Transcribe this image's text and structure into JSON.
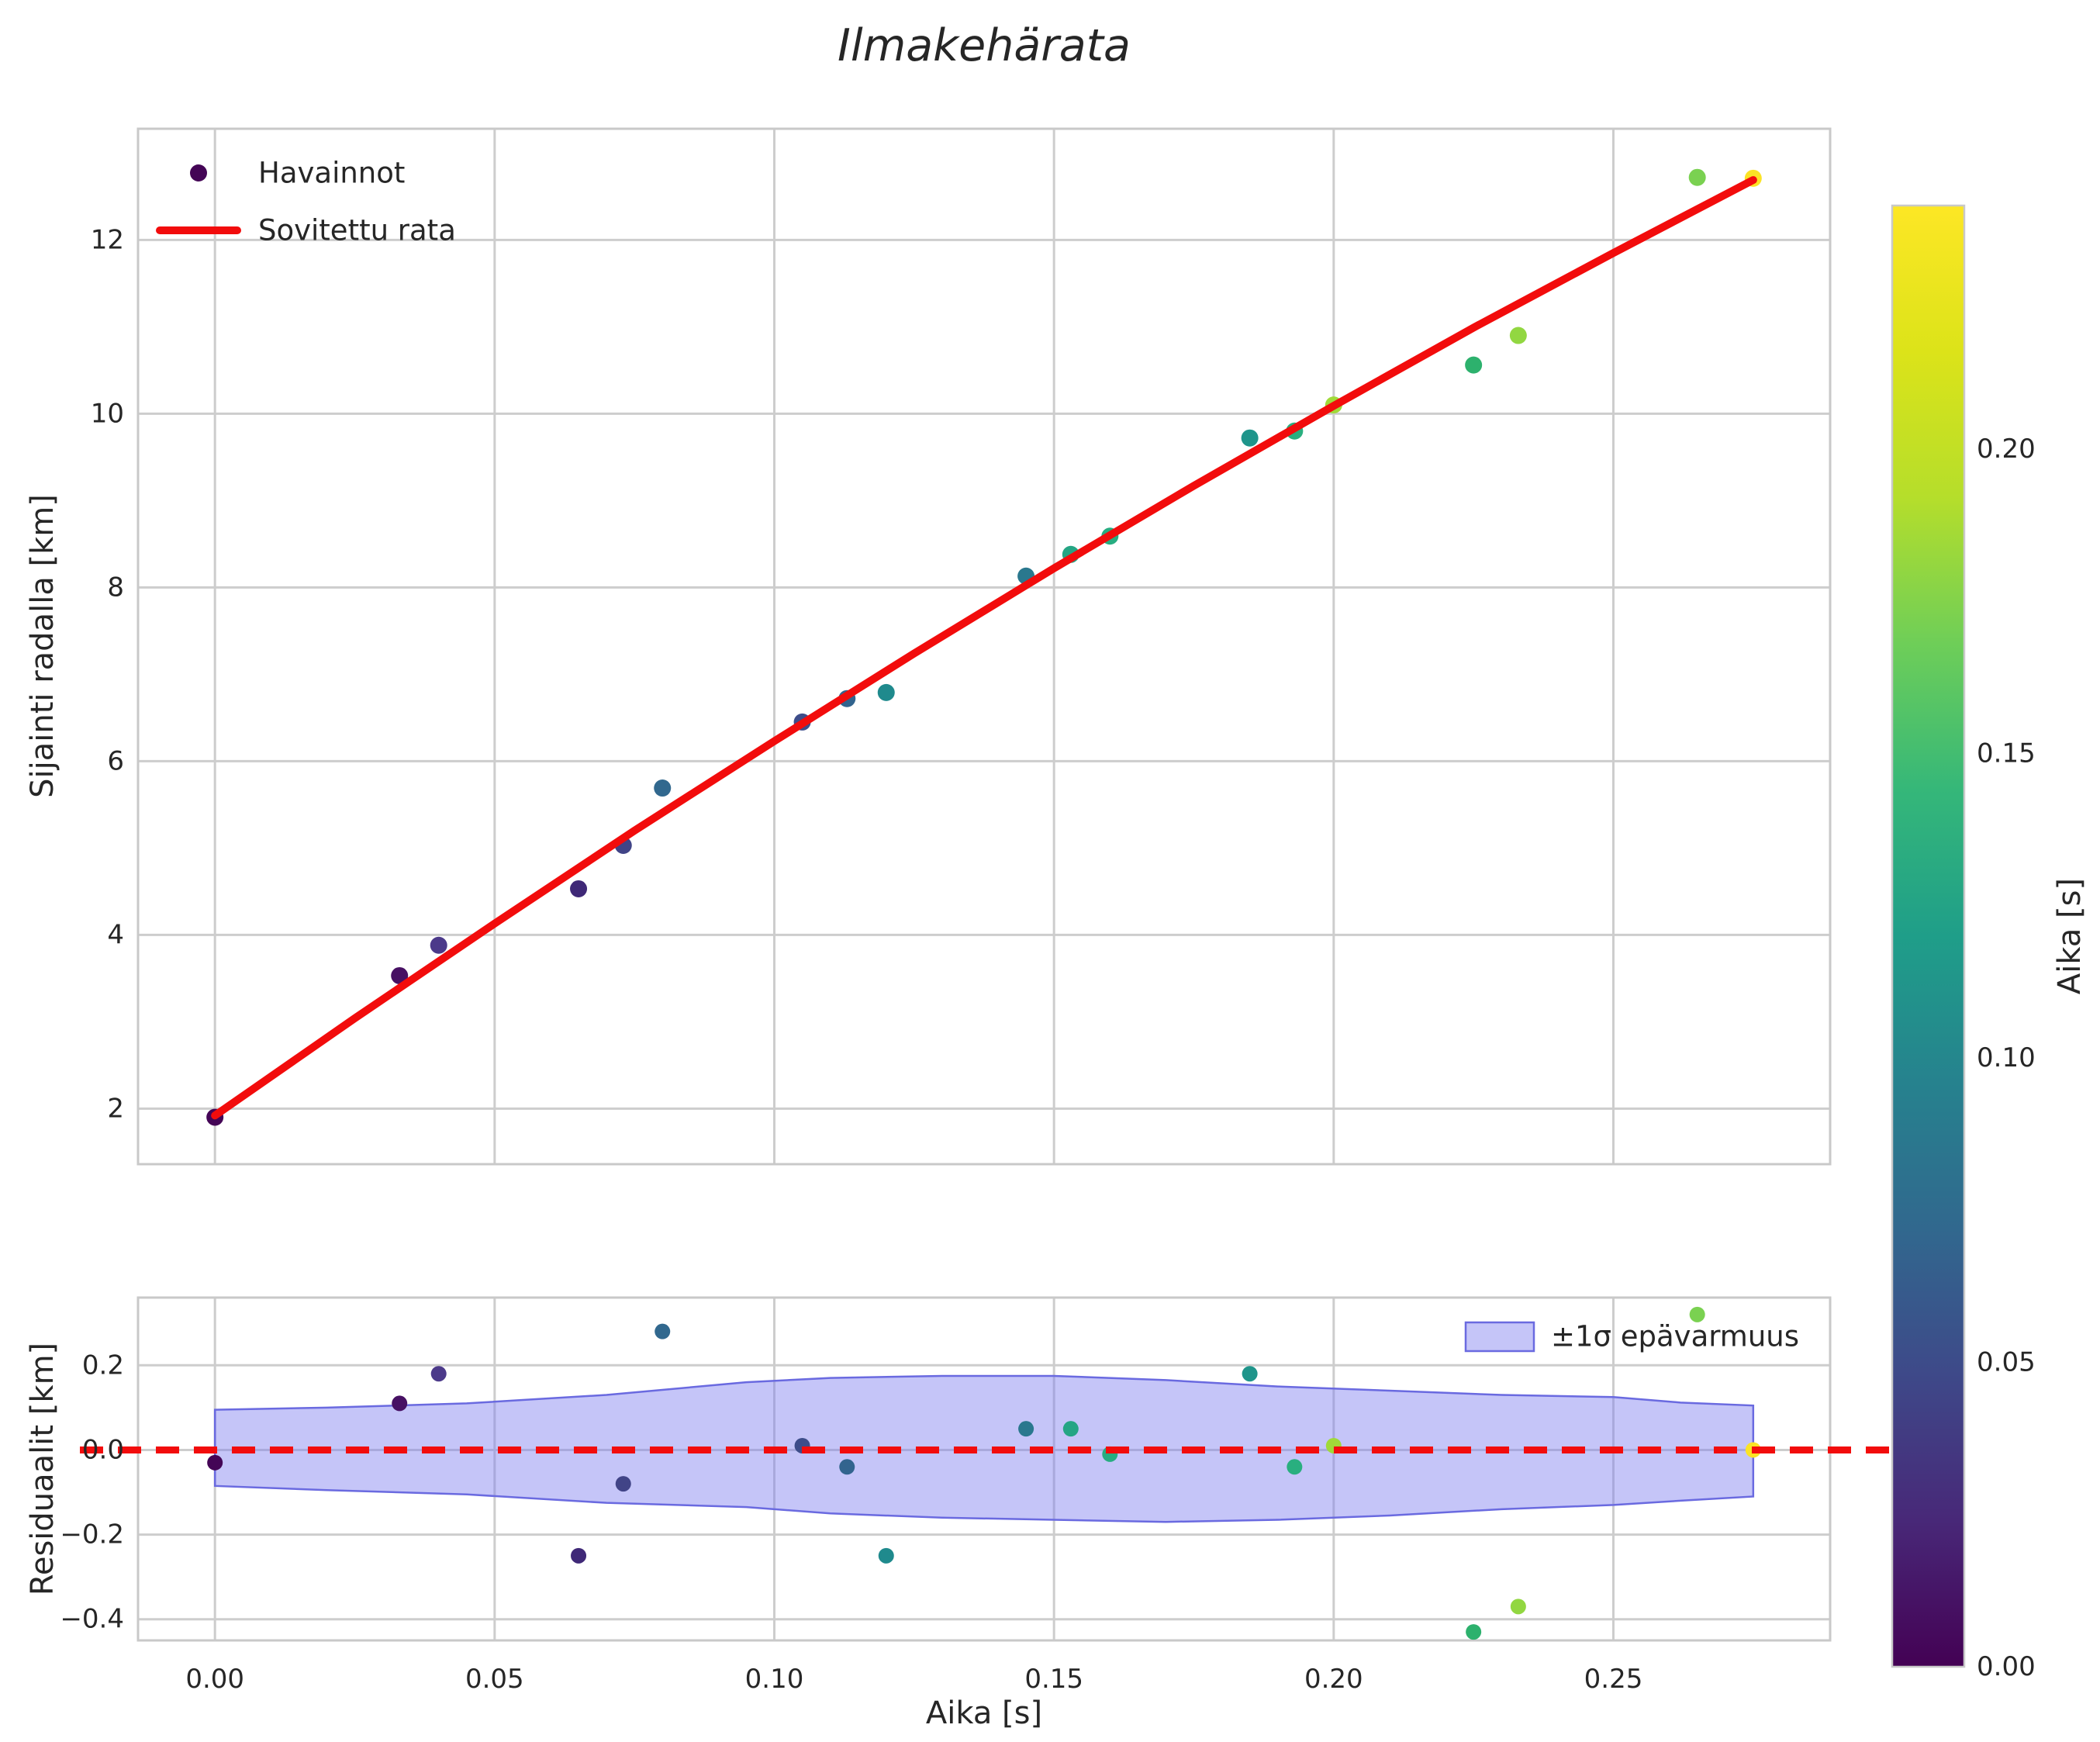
{
  "title": "Ilmakehärata",
  "figure": {
    "background": "#ffffff",
    "text_color": "#262626",
    "grid_color": "#cdcdcd",
    "spine_color": "#c9c9c9",
    "fit_line_color": "#f20c0c",
    "band_fill": "rgba(127,127,240,0.45)",
    "band_edge": "#6a6ae0"
  },
  "chart_data": [
    {
      "id": "trajectory",
      "type": "scatter",
      "title": "Ilmakehärata",
      "xlabel": "",
      "ylabel": "Sijainti radalla [km]",
      "xlim": [
        -0.01375,
        0.28875
      ],
      "ylim": [
        1.36,
        13.28
      ],
      "xticks": [
        0.0,
        0.05,
        0.1,
        0.15,
        0.2,
        0.25
      ],
      "yticks": [
        2,
        4,
        6,
        8,
        10,
        12
      ],
      "ytick_labels": [
        "2",
        "4",
        "6",
        "8",
        "10",
        "12"
      ],
      "grid": true,
      "legend": {
        "position": "upper left",
        "entries": [
          {
            "label": "Havainnot",
            "type": "marker",
            "color": "#440556"
          },
          {
            "label": "Sovitettu rata",
            "type": "line",
            "color": "#f20c0c"
          }
        ]
      },
      "series": [
        {
          "name": "Havainnot",
          "type": "scatter",
          "x": [
            0.0,
            0.033,
            0.04,
            0.065,
            0.073,
            0.08,
            0.105,
            0.113,
            0.12,
            0.145,
            0.153,
            0.16,
            0.185,
            0.193,
            0.2,
            0.225,
            0.233,
            0.265,
            0.275
          ],
          "y": [
            1.9,
            3.53,
            3.88,
            4.53,
            5.03,
            5.69,
            6.45,
            6.72,
            6.79,
            8.13,
            8.38,
            8.59,
            9.72,
            9.8,
            10.1,
            10.56,
            10.9,
            12.72,
            12.71
          ],
          "colors": [
            "#440556",
            "#471063",
            "#4c3a8a",
            "#3f2877",
            "#414487",
            "#31688e",
            "#3d4d8a",
            "#32648e",
            "#1f8a8d",
            "#2a788e",
            "#25a584",
            "#27ad81",
            "#1f958b",
            "#29af7f",
            "#a0da39",
            "#2db16d",
            "#92d741",
            "#7ad151",
            "#fbe326"
          ]
        },
        {
          "name": "Sovitettu rata",
          "type": "line",
          "color": "#f20c0c",
          "x": [
            0.0,
            0.025,
            0.05,
            0.075,
            0.1,
            0.125,
            0.15,
            0.175,
            0.2,
            0.225,
            0.25,
            0.275
          ],
          "y": [
            1.92,
            3.04,
            4.13,
            5.2,
            6.23,
            7.24,
            8.22,
            9.17,
            10.09,
            10.99,
            11.85,
            12.69
          ]
        }
      ]
    },
    {
      "id": "residuals",
      "type": "scatter",
      "xlabel": "Aika [s]",
      "ylabel": "Residuaalit [km]",
      "xlim": [
        -0.01375,
        0.28875
      ],
      "ylim": [
        -0.45,
        0.36
      ],
      "xticks": [
        0.0,
        0.05,
        0.1,
        0.15,
        0.2,
        0.25
      ],
      "xtick_labels": [
        "0.00",
        "0.05",
        "0.10",
        "0.15",
        "0.20",
        "0.25"
      ],
      "yticks": [
        0.2,
        0.0,
        -0.2,
        -0.4
      ],
      "ytick_labels": [
        "0.2",
        "0.0",
        "−0.2",
        "−0.4"
      ],
      "grid": true,
      "legend": {
        "position": "upper right",
        "entries": [
          {
            "label": "±1σ epävarmuus",
            "type": "patch",
            "fill": "rgba(127,127,240,0.45)",
            "edge": "#6a6ae0"
          }
        ]
      },
      "zero_line": {
        "y": 0,
        "color": "#f20c0c",
        "style": "dashed"
      },
      "band": {
        "x": [
          0.0,
          0.02,
          0.045,
          0.07,
          0.095,
          0.11,
          0.13,
          0.15,
          0.17,
          0.19,
          0.21,
          0.23,
          0.25,
          0.262,
          0.275
        ],
        "upper": [
          0.095,
          0.1,
          0.11,
          0.13,
          0.16,
          0.17,
          0.175,
          0.175,
          0.165,
          0.15,
          0.14,
          0.13,
          0.125,
          0.112,
          0.105
        ],
        "lower": [
          -0.085,
          -0.095,
          -0.105,
          -0.125,
          -0.135,
          -0.15,
          -0.16,
          -0.165,
          -0.17,
          -0.165,
          -0.155,
          -0.14,
          -0.13,
          -0.12,
          -0.11
        ]
      },
      "series": [
        {
          "name": "residuaalit",
          "type": "scatter",
          "x": [
            0.0,
            0.033,
            0.04,
            0.065,
            0.073,
            0.08,
            0.105,
            0.113,
            0.12,
            0.145,
            0.153,
            0.16,
            0.185,
            0.193,
            0.2,
            0.225,
            0.233,
            0.265,
            0.275
          ],
          "y": [
            -0.03,
            0.11,
            0.18,
            -0.25,
            -0.08,
            0.28,
            0.01,
            -0.04,
            -0.25,
            0.05,
            0.05,
            -0.01,
            0.18,
            -0.04,
            0.01,
            -0.43,
            -0.37,
            0.32,
            0.0
          ],
          "colors": [
            "#440556",
            "#471063",
            "#4c3a8a",
            "#3f2877",
            "#414487",
            "#31688e",
            "#3d4d8a",
            "#32648e",
            "#1f8a8d",
            "#2a788e",
            "#25a584",
            "#27ad81",
            "#1f958b",
            "#29af7f",
            "#a0da39",
            "#2db16d",
            "#92d741",
            "#7ad151",
            "#fbe326"
          ]
        }
      ]
    },
    {
      "id": "colorbar",
      "type": "colorbar",
      "label": "Aika [s]",
      "vmin": 0.0,
      "vmax": 0.24,
      "ticks": [
        0.0,
        0.05,
        0.1,
        0.15,
        0.2
      ],
      "tick_labels": [
        "0.00",
        "0.05",
        "0.10",
        "0.15",
        "0.20"
      ],
      "viridis_anchors": [
        "#440154",
        "#482878",
        "#3e4989",
        "#31688e",
        "#26828e",
        "#1f9e89",
        "#35b779",
        "#6ece58",
        "#b5de2b",
        "#dce319",
        "#fde725"
      ]
    }
  ]
}
